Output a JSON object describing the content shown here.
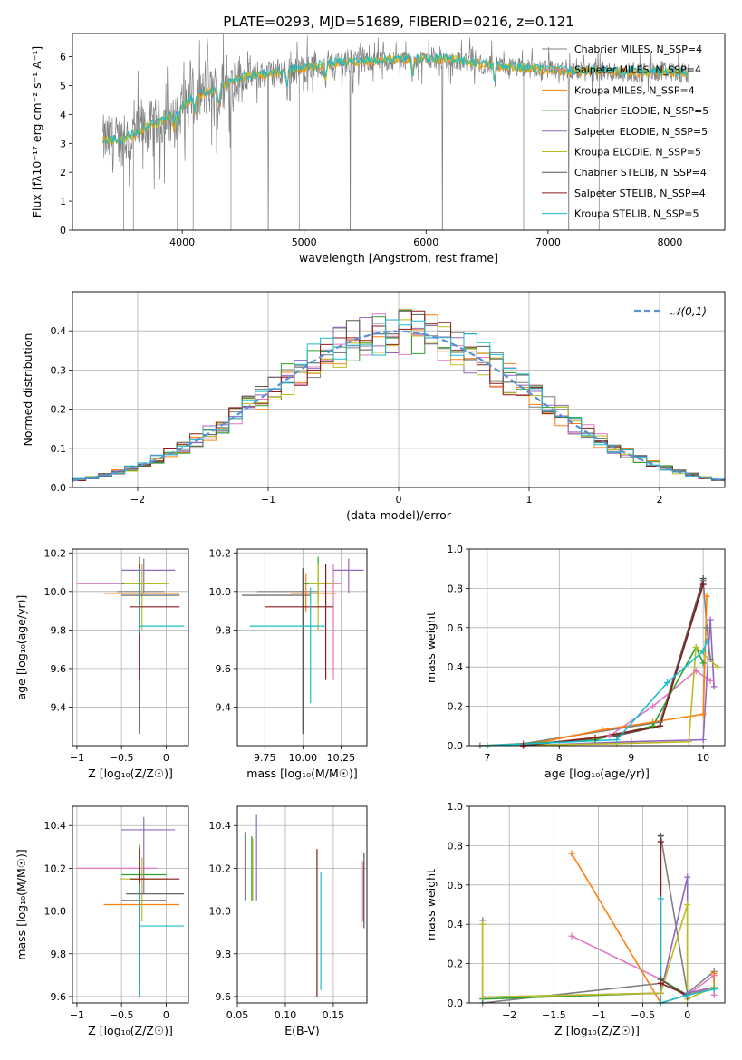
{
  "title": "PLATE=0293, MJD=51689, FIBERID=0216, z=0.121",
  "colors": {
    "chabrier_miles": "#7f7f7f",
    "salpeter_miles": "#e377c2",
    "kroupa_miles": "#ff7f0e",
    "chabrier_elodie": "#2ca02c",
    "salpeter_elodie": "#9467bd",
    "kroupa_elodie": "#bcbd22",
    "chabrier_stelib": "#555555",
    "salpeter_stelib": "#8b1a1a",
    "kroupa_stelib": "#17becf",
    "gaussian": "#5b8fd6"
  },
  "chart_data": [
    {
      "id": "spectrum",
      "type": "line",
      "xlabel": "wavelength [Angstrom, rest frame]",
      "ylabel": "Flux [fλ10⁻¹⁷ erg cm⁻² s⁻¹ A⁻¹]",
      "xlim": [
        3100,
        8450
      ],
      "ylim": [
        0,
        6.8
      ],
      "xticks": [
        4000,
        5000,
        6000,
        7000,
        8000
      ],
      "yticks": [
        0,
        1,
        2,
        3,
        4,
        5,
        6
      ],
      "legend_position": "top-right",
      "legend": [
        "Chabrier MILES, N_SSP=4",
        "Salpeter MILES, N_SSP=4",
        "Kroupa MILES, N_SSP=4",
        "Chabrier ELODIE, N_SSP=5",
        "Salpeter ELODIE, N_SSP=5",
        "Kroupa ELODIE, N_SSP=5",
        "Chabrier STELIB, N_SSP=4",
        "Salpeter STELIB, N_SSP=4",
        "Kroupa STELIB, N_SSP=5"
      ],
      "continuum": {
        "x": [
          3350,
          3500,
          3700,
          3900,
          4100,
          4300,
          4500,
          4700,
          5000,
          5300,
          5600,
          5900,
          6200,
          6500,
          6800,
          7100,
          7400,
          7700,
          8000,
          8150
        ],
        "y": [
          3.1,
          3.1,
          3.5,
          3.9,
          4.6,
          4.9,
          5.3,
          5.4,
          5.6,
          5.8,
          5.85,
          5.9,
          5.9,
          5.7,
          5.6,
          5.5,
          5.5,
          5.45,
          5.45,
          5.4
        ]
      }
    },
    {
      "id": "residuals",
      "type": "histogram",
      "xlabel": "(data-model)/error",
      "ylabel": "Normed distribution",
      "xlim": [
        -2.5,
        2.5
      ],
      "ylim": [
        0,
        0.5
      ],
      "xticks": [
        -2,
        -1,
        0,
        1,
        2
      ],
      "yticks": [
        0.0,
        0.1,
        0.2,
        0.3,
        0.4
      ],
      "bin_width": 0.1,
      "legend_position": "top-right",
      "legend": [
        "𝒩(0,1)"
      ],
      "gaussian": {
        "mean": 0,
        "sigma": 1
      }
    },
    {
      "id": "age_vs_Z",
      "type": "errorbar",
      "xlabel": "Z [log₁₀(Z/Z☉)]",
      "ylabel": "age  [log₁₀(age/yr)]",
      "xlim": [
        -1.05,
        0.25
      ],
      "ylim": [
        9.2,
        10.22
      ],
      "xticks": [
        -1.0,
        -0.5,
        0.0
      ],
      "yticks": [
        9.4,
        9.6,
        9.8,
        10.0,
        10.2
      ],
      "points": [
        {
          "s": "chabrier_miles",
          "x": -0.3,
          "xerr": [
            0.25,
            0.28
          ],
          "y": 10.0,
          "yerr": [
            0.72,
            0.12
          ]
        },
        {
          "s": "salpeter_miles",
          "x": -0.3,
          "xerr": [
            0.7,
            0.2
          ],
          "y": 10.04,
          "yerr": [
            0.5,
            0.1
          ]
        },
        {
          "s": "kroupa_miles",
          "x": -0.3,
          "xerr": [
            0.4,
            0.45
          ],
          "y": 9.99,
          "yerr": [
            0.1,
            0.1
          ]
        },
        {
          "s": "chabrier_elodie",
          "x": -0.3,
          "xerr": [
            0.2,
            0.3
          ],
          "y": 10.04,
          "yerr": [
            0.1,
            0.14
          ]
        },
        {
          "s": "salpeter_elodie",
          "x": -0.25,
          "xerr": [
            0.25,
            0.35
          ],
          "y": 10.11,
          "yerr": [
            0.12,
            0.06
          ]
        },
        {
          "s": "kroupa_elodie",
          "x": -0.27,
          "xerr": [
            0.2,
            0.3
          ],
          "y": 10.04,
          "yerr": [
            0.24,
            0.1
          ]
        },
        {
          "s": "chabrier_stelib",
          "x": -0.3,
          "xerr": [
            0.2,
            0.45
          ],
          "y": 9.98,
          "yerr": [
            0.72,
            0.14
          ]
        },
        {
          "s": "salpeter_stelib",
          "x": -0.3,
          "xerr": [
            0.1,
            0.45
          ],
          "y": 9.92,
          "yerr": [
            0.38,
            0.22
          ]
        },
        {
          "s": "kroupa_stelib",
          "x": -0.3,
          "xerr": [
            0.0,
            0.5
          ],
          "y": 9.82,
          "yerr": [
            0.04,
            0.3
          ]
        }
      ]
    },
    {
      "id": "age_vs_mass",
      "type": "errorbar",
      "xlabel": "mass [log₁₀(M/M☉)]",
      "xlim": [
        9.57,
        10.42
      ],
      "ylim": [
        9.2,
        10.22
      ],
      "xticks": [
        9.75,
        10.0,
        10.25
      ],
      "xtick_labels": [
        "9.75",
        "10.00",
        "10.25"
      ],
      "yticks": [
        9.4,
        9.6,
        9.8,
        10.0,
        10.2
      ],
      "points": [
        {
          "s": "chabrier_miles",
          "x": 10.0,
          "xerr": [
            0.3,
            0.1
          ],
          "y": 10.0,
          "yerr": [
            0.72,
            0.12
          ]
        },
        {
          "s": "salpeter_miles",
          "x": 10.2,
          "xerr": [
            0.15,
            0.05
          ],
          "y": 10.04,
          "yerr": [
            0.5,
            0.1
          ]
        },
        {
          "s": "kroupa_miles",
          "x": 10.02,
          "xerr": [
            0.1,
            0.2
          ],
          "y": 9.99,
          "yerr": [
            0.1,
            0.1
          ]
        },
        {
          "s": "chabrier_elodie",
          "x": 10.1,
          "xerr": [
            0.1,
            0.1
          ],
          "y": 10.04,
          "yerr": [
            0.1,
            0.14
          ]
        },
        {
          "s": "salpeter_elodie",
          "x": 10.3,
          "xerr": [
            0.1,
            0.1
          ],
          "y": 10.11,
          "yerr": [
            0.12,
            0.06
          ]
        },
        {
          "s": "kroupa_elodie",
          "x": 10.1,
          "xerr": [
            0.06,
            0.1
          ],
          "y": 10.04,
          "yerr": [
            0.24,
            0.1
          ]
        },
        {
          "s": "chabrier_stelib",
          "x": 10.0,
          "xerr": [
            0.4,
            0.05
          ],
          "y": 9.98,
          "yerr": [
            0.72,
            0.14
          ]
        },
        {
          "s": "salpeter_stelib",
          "x": 10.15,
          "xerr": [
            0.4,
            0.05
          ],
          "y": 9.92,
          "yerr": [
            0.38,
            0.22
          ]
        },
        {
          "s": "kroupa_stelib",
          "x": 10.05,
          "xerr": [
            0.4,
            0.1
          ],
          "y": 9.82,
          "yerr": [
            0.4,
            0.2
          ]
        }
      ]
    },
    {
      "id": "weight_vs_age",
      "type": "line",
      "xlabel": "age  [log₁₀(age/yr)]",
      "ylabel": "mass weight",
      "xlim": [
        6.75,
        10.3
      ],
      "ylim": [
        0,
        1.0
      ],
      "xticks": [
        7,
        8,
        9,
        10
      ],
      "yticks": [
        0.0,
        0.2,
        0.4,
        0.6,
        0.8,
        1.0
      ],
      "series": [
        {
          "s": "chabrier_miles",
          "x": [
            6.9,
            7.5,
            9.4,
            10.0,
            10.05,
            10.1
          ],
          "y": [
            0.0,
            0.01,
            0.12,
            0.84,
            0.6,
            0.44
          ]
        },
        {
          "s": "salpeter_miles",
          "x": [
            7.5,
            8.7,
            9.3,
            9.9,
            10.1
          ],
          "y": [
            0.0,
            0.05,
            0.2,
            0.38,
            0.33
          ]
        },
        {
          "s": "kroupa_miles",
          "x": [
            7.5,
            8.6,
            9.3,
            10.0,
            10.05
          ],
          "y": [
            0.0,
            0.08,
            0.12,
            0.16,
            0.76
          ]
        },
        {
          "s": "chabrier_elodie",
          "x": [
            7.0,
            8.5,
            9.3,
            9.9,
            10.0
          ],
          "y": [
            0.0,
            0.03,
            0.1,
            0.5,
            0.42
          ]
        },
        {
          "s": "salpeter_elodie",
          "x": [
            7.5,
            9.0,
            10.0,
            10.1,
            10.15
          ],
          "y": [
            0.0,
            0.02,
            0.03,
            0.64,
            0.3
          ]
        },
        {
          "s": "kroupa_elodie",
          "x": [
            7.0,
            8.8,
            9.8,
            9.9,
            10.2
          ],
          "y": [
            0.0,
            0.01,
            0.02,
            0.5,
            0.4
          ]
        },
        {
          "s": "chabrier_stelib",
          "x": [
            7.5,
            8.8,
            9.4,
            10.0
          ],
          "y": [
            0.0,
            0.05,
            0.1,
            0.85
          ]
        },
        {
          "s": "salpeter_stelib",
          "x": [
            7.5,
            8.5,
            9.4,
            10.0
          ],
          "y": [
            0.0,
            0.04,
            0.1,
            0.82
          ]
        },
        {
          "s": "kroupa_stelib",
          "x": [
            7.0,
            8.8,
            9.5,
            10.0,
            10.05
          ],
          "y": [
            0.0,
            0.03,
            0.32,
            0.48,
            0.53
          ]
        }
      ]
    },
    {
      "id": "mass_vs_Z",
      "type": "errorbar",
      "xlabel": "Z [log₁₀(Z/Z☉)]",
      "ylabel": "mass [log₁₀(M/M☉)]",
      "xlim": [
        -1.05,
        0.25
      ],
      "ylim": [
        9.57,
        10.49
      ],
      "xticks": [
        -1.0,
        -0.5,
        0.0
      ],
      "yticks": [
        9.6,
        9.8,
        10.0,
        10.2,
        10.4
      ],
      "points": [
        {
          "s": "chabrier_miles",
          "x": -0.3,
          "xerr": [
            0.2,
            0.3
          ],
          "y": 10.05,
          "yerr": [
            0.45,
            0.25
          ]
        },
        {
          "s": "salpeter_miles",
          "x": -0.3,
          "xerr": [
            0.7,
            0.2
          ],
          "y": 10.2,
          "yerr": [
            0.25,
            0.1
          ]
        },
        {
          "s": "kroupa_miles",
          "x": -0.3,
          "xerr": [
            0.4,
            0.45
          ],
          "y": 10.03,
          "yerr": [
            0.1,
            0.1
          ]
        },
        {
          "s": "chabrier_elodie",
          "x": -0.3,
          "xerr": [
            0.2,
            0.3
          ],
          "y": 10.17,
          "yerr": [
            0.1,
            0.14
          ]
        },
        {
          "s": "salpeter_elodie",
          "x": -0.25,
          "xerr": [
            0.25,
            0.35
          ],
          "y": 10.38,
          "yerr": [
            0.3,
            0.06
          ]
        },
        {
          "s": "kroupa_elodie",
          "x": -0.27,
          "xerr": [
            0.25,
            0.3
          ],
          "y": 10.15,
          "yerr": [
            0.2,
            0.1
          ]
        },
        {
          "s": "chabrier_stelib",
          "x": -0.3,
          "xerr": [
            0.15,
            0.5
          ],
          "y": 10.08,
          "yerr": [
            0.48,
            0.1
          ]
        },
        {
          "s": "salpeter_stelib",
          "x": -0.3,
          "xerr": [
            0.1,
            0.45
          ],
          "y": 10.15,
          "yerr": [
            0.5,
            0.14
          ]
        },
        {
          "s": "kroupa_stelib",
          "x": -0.3,
          "xerr": [
            0.0,
            0.5
          ],
          "y": 9.93,
          "yerr": [
            0.33,
            0.2
          ]
        }
      ]
    },
    {
      "id": "mass_vs_ebv",
      "type": "errorbar",
      "xlabel": "E(B-V)",
      "xlim": [
        0.05,
        0.185
      ],
      "ylim": [
        9.57,
        10.49
      ],
      "xticks": [
        0.05,
        0.1,
        0.15
      ],
      "xtick_labels": [
        "0.05",
        "0.10",
        "0.15"
      ],
      "yticks": [
        9.6,
        9.8,
        10.0,
        10.2,
        10.4
      ],
      "points": [
        {
          "s": "chabrier_miles",
          "x": 0.058,
          "y": 10.2,
          "yerr": [
            0.15,
            0.17
          ]
        },
        {
          "s": "chabrier_elodie",
          "x": 0.065,
          "y": 10.2,
          "yerr": [
            0.15,
            0.15
          ]
        },
        {
          "s": "salpeter_elodie",
          "x": 0.07,
          "y": 10.25,
          "yerr": [
            0.2,
            0.2
          ]
        },
        {
          "s": "kroupa_elodie",
          "x": 0.066,
          "y": 10.2,
          "yerr": [
            0.15,
            0.14
          ]
        },
        {
          "s": "salpeter_stelib",
          "x": 0.133,
          "y": 9.98,
          "yerr": [
            0.38,
            0.31
          ]
        },
        {
          "s": "kroupa_stelib",
          "x": 0.137,
          "y": 9.9,
          "yerr": [
            0.27,
            0.28
          ]
        },
        {
          "s": "kroupa_miles",
          "x": 0.179,
          "y": 10.08,
          "yerr": [
            0.16,
            0.16
          ]
        },
        {
          "s": "salpeter_miles",
          "x": 0.181,
          "y": 10.1,
          "yerr": [
            0.15,
            0.13
          ]
        },
        {
          "s": "chabrier_stelib",
          "x": 0.182,
          "y": 10.1,
          "yerr": [
            0.18,
            0.17
          ]
        }
      ]
    },
    {
      "id": "weight_vs_Z",
      "type": "line",
      "xlabel": "Z [log₁₀(Z/Z☉)]",
      "ylabel": "mass weight",
      "xlim": [
        -2.45,
        0.42
      ],
      "ylim": [
        0,
        1.0
      ],
      "xticks": [
        -2.0,
        -1.5,
        -1.0,
        -0.5,
        0.0
      ],
      "yticks": [
        0.0,
        0.2,
        0.4,
        0.6,
        0.8,
        1.0
      ],
      "series": [
        {
          "s": "chabrier_miles",
          "x": [
            -2.3,
            -2.3,
            -0.3,
            -0.3,
            0.0,
            0.3,
            0.3
          ],
          "y": [
            0.42,
            0.0,
            0.1,
            0.85,
            0.05,
            0.16,
            0.08
          ]
        },
        {
          "s": "salpeter_miles",
          "x": [
            -1.3,
            -0.3,
            0.0,
            0.3,
            0.3
          ],
          "y": [
            0.34,
            0.12,
            0.04,
            0.14,
            0.04
          ]
        },
        {
          "s": "kroupa_miles",
          "x": [
            -1.3,
            -0.3,
            0.0,
            0.3,
            0.3
          ],
          "y": [
            0.76,
            0.0,
            0.04,
            0.08,
            0.15
          ]
        },
        {
          "s": "chabrier_elodie",
          "x": [
            -2.3,
            -0.3,
            -0.3,
            0.0
          ],
          "y": [
            0.02,
            0.05,
            0.12,
            0.04
          ]
        },
        {
          "s": "salpeter_elodie",
          "x": [
            -2.3,
            -0.3,
            0.0,
            0.0,
            0.3
          ],
          "y": [
            0.03,
            0.05,
            0.64,
            0.05,
            0.08
          ]
        },
        {
          "s": "kroupa_elodie",
          "x": [
            -2.3,
            -2.3,
            -0.3,
            0.0,
            0.0,
            0.3
          ],
          "y": [
            0.4,
            0.03,
            0.05,
            0.5,
            0.02,
            0.08
          ]
        },
        {
          "s": "chabrier_stelib",
          "x": [
            -0.3,
            -0.3,
            0.0
          ],
          "y": [
            0.85,
            0.12,
            0.03
          ]
        },
        {
          "s": "salpeter_stelib",
          "x": [
            -0.3,
            -0.3,
            0.0
          ],
          "y": [
            0.82,
            0.1,
            0.04
          ]
        },
        {
          "s": "kroupa_stelib",
          "x": [
            -0.3,
            -0.3,
            0.0,
            0.3
          ],
          "y": [
            0.53,
            0.0,
            0.04,
            0.07
          ]
        }
      ]
    }
  ]
}
